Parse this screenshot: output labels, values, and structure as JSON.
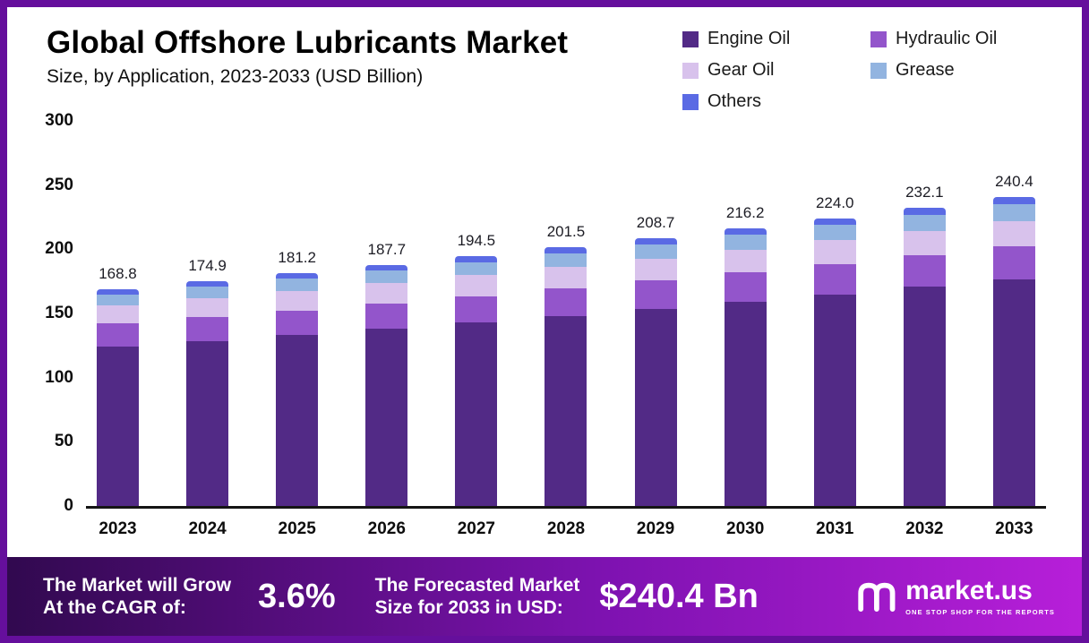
{
  "header": {
    "title": "Global Offshore Lubricants Market",
    "subtitle": "Size, by Application, 2023-2033 (USD Billion)"
  },
  "chart_data": {
    "type": "bar",
    "stacked": true,
    "title": "Global Offshore Lubricants Market Size, by Application, 2023-2033 (USD Billion)",
    "xlabel": "",
    "ylabel": "",
    "ylim": [
      0,
      300
    ],
    "yticks": [
      0,
      50,
      100,
      150,
      200,
      250,
      300
    ],
    "grid": false,
    "legend_position": "top-right",
    "categories": [
      "2023",
      "2024",
      "2025",
      "2026",
      "2027",
      "2028",
      "2029",
      "2030",
      "2031",
      "2032",
      "2033"
    ],
    "totals_labels": [
      "168.8",
      "174.9",
      "181.2",
      "187.7",
      "194.5",
      "201.5",
      "208.7",
      "216.2",
      "224.0",
      "232.1",
      "240.4"
    ],
    "totals": [
      168.8,
      174.9,
      181.2,
      187.7,
      194.5,
      201.5,
      208.7,
      216.2,
      224.0,
      232.1,
      240.4
    ],
    "series": [
      {
        "name": "Engine Oil",
        "color": "#522a86",
        "values": [
          124.1,
          128.6,
          133.2,
          138.0,
          143.0,
          148.1,
          153.4,
          158.9,
          164.6,
          170.6,
          176.7
        ]
      },
      {
        "name": "Hydraulic Oil",
        "color": "#9355cb",
        "values": [
          17.9,
          18.5,
          19.2,
          19.9,
          20.6,
          21.4,
          22.1,
          22.9,
          23.7,
          24.6,
          25.5
        ]
      },
      {
        "name": "Gear Oil",
        "color": "#d8c2ec",
        "values": [
          14.0,
          14.5,
          15.0,
          15.6,
          16.1,
          16.7,
          17.3,
          17.9,
          18.6,
          19.3,
          20.0
        ]
      },
      {
        "name": "Grease",
        "color": "#92b4e0",
        "values": [
          8.9,
          9.3,
          9.6,
          9.9,
          10.3,
          10.7,
          11.1,
          11.5,
          11.9,
          12.3,
          12.7
        ]
      },
      {
        "name": "Others",
        "color": "#5a6ae4",
        "values": [
          3.9,
          4.0,
          4.2,
          4.3,
          4.5,
          4.6,
          4.8,
          5.0,
          5.2,
          5.3,
          5.5
        ]
      }
    ]
  },
  "footer": {
    "cagr_line1": "The Market will Grow",
    "cagr_line2": "At the CAGR of:",
    "cagr_value": "3.6%",
    "forecast_line1": "The Forecasted Market",
    "forecast_line2": "Size for 2033 in USD:",
    "forecast_value": "$240.4 Bn",
    "brand": "market.us",
    "brand_tagline": "ONE STOP SHOP FOR THE REPORTS"
  },
  "colors": {
    "frame_border": "#650f9c",
    "footer_gradient_left": "#31094f",
    "footer_gradient_right": "#b71fd9"
  }
}
